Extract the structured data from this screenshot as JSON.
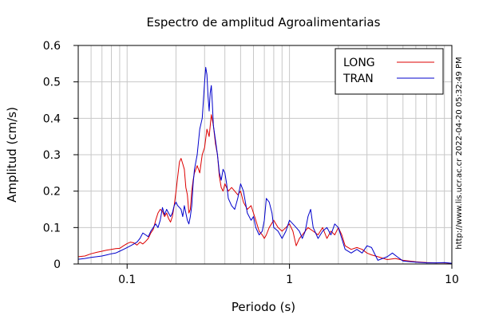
{
  "chart_data": {
    "type": "line",
    "title": "Espectro de amplitud Agroalimentarias",
    "xlabel": "Periodo (s)",
    "ylabel": "Amplitud (cm/s)",
    "x_scale": "log",
    "xlim": [
      0.05,
      10
    ],
    "ylim": [
      0,
      0.6
    ],
    "x_ticks": [
      {
        "value": 0.1,
        "label": "0.1"
      },
      {
        "value": 1,
        "label": "1"
      },
      {
        "value": 10,
        "label": "10"
      }
    ],
    "y_ticks": [
      {
        "value": 0,
        "label": "0"
      },
      {
        "value": 0.1,
        "label": "0.1"
      },
      {
        "value": 0.2,
        "label": "0.2"
      },
      {
        "value": 0.3,
        "label": "0.3"
      },
      {
        "value": 0.4,
        "label": "0.4"
      },
      {
        "value": 0.5,
        "label": "0.5"
      },
      {
        "value": 0.6,
        "label": "0.6"
      }
    ],
    "grid": true,
    "legend_position": "top-right",
    "series": [
      {
        "name": "LONG",
        "color": "#dd0000",
        "points": [
          [
            0.05,
            0.02
          ],
          [
            0.055,
            0.022
          ],
          [
            0.06,
            0.028
          ],
          [
            0.065,
            0.032
          ],
          [
            0.07,
            0.035
          ],
          [
            0.075,
            0.038
          ],
          [
            0.08,
            0.04
          ],
          [
            0.085,
            0.042
          ],
          [
            0.09,
            0.043
          ],
          [
            0.095,
            0.05
          ],
          [
            0.1,
            0.056
          ],
          [
            0.105,
            0.06
          ],
          [
            0.11,
            0.058
          ],
          [
            0.115,
            0.052
          ],
          [
            0.12,
            0.06
          ],
          [
            0.125,
            0.055
          ],
          [
            0.13,
            0.062
          ],
          [
            0.135,
            0.07
          ],
          [
            0.14,
            0.085
          ],
          [
            0.145,
            0.095
          ],
          [
            0.15,
            0.12
          ],
          [
            0.155,
            0.14
          ],
          [
            0.16,
            0.15
          ],
          [
            0.165,
            0.145
          ],
          [
            0.17,
            0.13
          ],
          [
            0.175,
            0.14
          ],
          [
            0.18,
            0.125
          ],
          [
            0.185,
            0.115
          ],
          [
            0.19,
            0.13
          ],
          [
            0.195,
            0.16
          ],
          [
            0.2,
            0.2
          ],
          [
            0.205,
            0.24
          ],
          [
            0.21,
            0.28
          ],
          [
            0.215,
            0.29
          ],
          [
            0.22,
            0.275
          ],
          [
            0.225,
            0.26
          ],
          [
            0.23,
            0.21
          ],
          [
            0.235,
            0.19
          ],
          [
            0.24,
            0.14
          ],
          [
            0.245,
            0.15
          ],
          [
            0.25,
            0.2
          ],
          [
            0.255,
            0.23
          ],
          [
            0.26,
            0.25
          ],
          [
            0.27,
            0.27
          ],
          [
            0.28,
            0.25
          ],
          [
            0.29,
            0.3
          ],
          [
            0.3,
            0.32
          ],
          [
            0.31,
            0.37
          ],
          [
            0.32,
            0.35
          ],
          [
            0.33,
            0.41
          ],
          [
            0.34,
            0.38
          ],
          [
            0.35,
            0.33
          ],
          [
            0.36,
            0.3
          ],
          [
            0.37,
            0.24
          ],
          [
            0.38,
            0.21
          ],
          [
            0.39,
            0.2
          ],
          [
            0.4,
            0.22
          ],
          [
            0.42,
            0.2
          ],
          [
            0.44,
            0.21
          ],
          [
            0.46,
            0.2
          ],
          [
            0.48,
            0.19
          ],
          [
            0.5,
            0.2
          ],
          [
            0.52,
            0.17
          ],
          [
            0.55,
            0.15
          ],
          [
            0.58,
            0.16
          ],
          [
            0.6,
            0.14
          ],
          [
            0.62,
            0.12
          ],
          [
            0.65,
            0.09
          ],
          [
            0.68,
            0.08
          ],
          [
            0.7,
            0.07
          ],
          [
            0.72,
            0.08
          ],
          [
            0.75,
            0.1
          ],
          [
            0.8,
            0.12
          ],
          [
            0.85,
            0.1
          ],
          [
            0.9,
            0.09
          ],
          [
            0.95,
            0.1
          ],
          [
            1.0,
            0.11
          ],
          [
            1.05,
            0.09
          ],
          [
            1.1,
            0.05
          ],
          [
            1.15,
            0.07
          ],
          [
            1.2,
            0.08
          ],
          [
            1.3,
            0.1
          ],
          [
            1.4,
            0.09
          ],
          [
            1.5,
            0.08
          ],
          [
            1.6,
            0.1
          ],
          [
            1.7,
            0.07
          ],
          [
            1.8,
            0.09
          ],
          [
            1.9,
            0.08
          ],
          [
            2.0,
            0.1
          ],
          [
            2.1,
            0.08
          ],
          [
            2.2,
            0.05
          ],
          [
            2.4,
            0.04
          ],
          [
            2.6,
            0.045
          ],
          [
            2.8,
            0.04
          ],
          [
            3.0,
            0.03
          ],
          [
            3.2,
            0.025
          ],
          [
            3.5,
            0.02
          ],
          [
            4.0,
            0.012
          ],
          [
            4.5,
            0.015
          ],
          [
            5.0,
            0.01
          ],
          [
            6.0,
            0.006
          ],
          [
            7.0,
            0.004
          ],
          [
            8.0,
            0.003
          ],
          [
            9.0,
            0.003
          ],
          [
            10.0,
            0.002
          ]
        ]
      },
      {
        "name": "TRAN",
        "color": "#0000cc",
        "points": [
          [
            0.05,
            0.013
          ],
          [
            0.055,
            0.015
          ],
          [
            0.06,
            0.018
          ],
          [
            0.065,
            0.02
          ],
          [
            0.07,
            0.022
          ],
          [
            0.075,
            0.025
          ],
          [
            0.08,
            0.028
          ],
          [
            0.085,
            0.03
          ],
          [
            0.09,
            0.035
          ],
          [
            0.095,
            0.04
          ],
          [
            0.1,
            0.045
          ],
          [
            0.105,
            0.05
          ],
          [
            0.11,
            0.055
          ],
          [
            0.115,
            0.06
          ],
          [
            0.12,
            0.07
          ],
          [
            0.125,
            0.085
          ],
          [
            0.13,
            0.08
          ],
          [
            0.135,
            0.075
          ],
          [
            0.14,
            0.09
          ],
          [
            0.145,
            0.1
          ],
          [
            0.15,
            0.11
          ],
          [
            0.155,
            0.1
          ],
          [
            0.16,
            0.12
          ],
          [
            0.165,
            0.155
          ],
          [
            0.17,
            0.135
          ],
          [
            0.175,
            0.15
          ],
          [
            0.18,
            0.14
          ],
          [
            0.185,
            0.13
          ],
          [
            0.19,
            0.14
          ],
          [
            0.195,
            0.16
          ],
          [
            0.2,
            0.17
          ],
          [
            0.205,
            0.16
          ],
          [
            0.21,
            0.155
          ],
          [
            0.215,
            0.15
          ],
          [
            0.22,
            0.13
          ],
          [
            0.225,
            0.16
          ],
          [
            0.23,
            0.14
          ],
          [
            0.235,
            0.12
          ],
          [
            0.24,
            0.11
          ],
          [
            0.245,
            0.13
          ],
          [
            0.25,
            0.16
          ],
          [
            0.255,
            0.22
          ],
          [
            0.26,
            0.26
          ],
          [
            0.27,
            0.3
          ],
          [
            0.28,
            0.37
          ],
          [
            0.29,
            0.4
          ],
          [
            0.295,
            0.45
          ],
          [
            0.3,
            0.5
          ],
          [
            0.305,
            0.54
          ],
          [
            0.31,
            0.52
          ],
          [
            0.315,
            0.46
          ],
          [
            0.32,
            0.42
          ],
          [
            0.325,
            0.47
          ],
          [
            0.33,
            0.49
          ],
          [
            0.335,
            0.44
          ],
          [
            0.34,
            0.38
          ],
          [
            0.35,
            0.34
          ],
          [
            0.36,
            0.3
          ],
          [
            0.37,
            0.25
          ],
          [
            0.38,
            0.23
          ],
          [
            0.39,
            0.26
          ],
          [
            0.4,
            0.25
          ],
          [
            0.41,
            0.22
          ],
          [
            0.42,
            0.18
          ],
          [
            0.44,
            0.16
          ],
          [
            0.46,
            0.15
          ],
          [
            0.48,
            0.18
          ],
          [
            0.5,
            0.22
          ],
          [
            0.52,
            0.2
          ],
          [
            0.55,
            0.14
          ],
          [
            0.58,
            0.12
          ],
          [
            0.6,
            0.13
          ],
          [
            0.62,
            0.1
          ],
          [
            0.65,
            0.08
          ],
          [
            0.68,
            0.09
          ],
          [
            0.7,
            0.12
          ],
          [
            0.72,
            0.18
          ],
          [
            0.75,
            0.17
          ],
          [
            0.78,
            0.14
          ],
          [
            0.8,
            0.1
          ],
          [
            0.85,
            0.09
          ],
          [
            0.9,
            0.07
          ],
          [
            0.95,
            0.09
          ],
          [
            1.0,
            0.12
          ],
          [
            1.05,
            0.11
          ],
          [
            1.1,
            0.1
          ],
          [
            1.15,
            0.09
          ],
          [
            1.2,
            0.07
          ],
          [
            1.25,
            0.09
          ],
          [
            1.3,
            0.13
          ],
          [
            1.35,
            0.15
          ],
          [
            1.4,
            0.1
          ],
          [
            1.5,
            0.07
          ],
          [
            1.6,
            0.09
          ],
          [
            1.7,
            0.1
          ],
          [
            1.8,
            0.08
          ],
          [
            1.9,
            0.11
          ],
          [
            2.0,
            0.1
          ],
          [
            2.1,
            0.07
          ],
          [
            2.2,
            0.04
          ],
          [
            2.4,
            0.03
          ],
          [
            2.6,
            0.04
          ],
          [
            2.8,
            0.03
          ],
          [
            3.0,
            0.05
          ],
          [
            3.2,
            0.045
          ],
          [
            3.5,
            0.01
          ],
          [
            4.0,
            0.02
          ],
          [
            4.3,
            0.03
          ],
          [
            4.6,
            0.02
          ],
          [
            5.0,
            0.008
          ],
          [
            6.0,
            0.005
          ],
          [
            7.0,
            0.003
          ],
          [
            8.0,
            0.003
          ],
          [
            9.0,
            0.004
          ],
          [
            10.0,
            0.002
          ]
        ]
      }
    ]
  },
  "side_text": "http://www.lis.ucr.ac.cr      2022-04-20 05:32:49 PM"
}
